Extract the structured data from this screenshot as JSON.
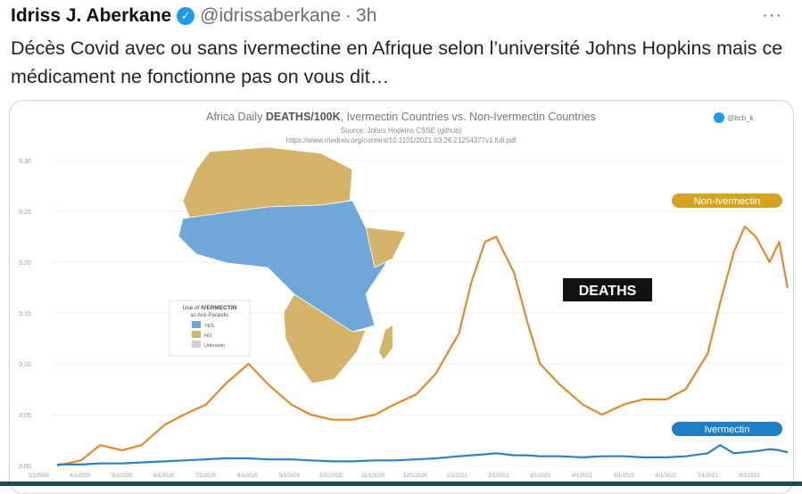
{
  "tweet": {
    "author_name": "Idriss J. Aberkane",
    "verified_badge": "verified-check-icon",
    "handle": "@idrissaberkane",
    "separator": "·",
    "time": "3h",
    "more_icon": "more-horizontal-icon",
    "more_label": "···",
    "text": "Décès Covid avec ou sans ivermectine en Afrique selon l’université Johns Hopkins mais ce médicament ne fonctionne pas on vous dit…"
  },
  "chart_data": {
    "type": "line",
    "title_bold": "DEATHS/100K",
    "title_prefix": "Africa Daily ",
    "title_suffix": ", Ivermectin Countries vs. Non-Ivermectin Countries",
    "source": "Source: Johns Hopkins CSSE (github)",
    "url": "https://www.medrxiv.org/content/10.1101/2021.03.26.21254377v1.full.pdf",
    "credit": "@bcb_k",
    "annotation": "DEATHS",
    "ylim": [
      0,
      0.3
    ],
    "y_ticks": [
      "0.30",
      "0.25",
      "0.20",
      "0.15",
      "0.10",
      "0.05",
      "0.00"
    ],
    "x_ticks": [
      "3/1/2020",
      "4/1/2020",
      "5/1/2020",
      "6/1/2020",
      "7/1/2020",
      "8/1/2020",
      "9/1/2020",
      "10/1/2020",
      "11/1/2020",
      "12/1/2020",
      "1/1/2021",
      "2/1/2021",
      "3/1/2021",
      "4/1/2021",
      "5/1/2021",
      "6/1/2021",
      "7/1/2021",
      "8/1/2021"
    ],
    "grid": true,
    "x": [
      "2020-03-15",
      "2020-04-01",
      "2020-04-15",
      "2020-05-01",
      "2020-05-15",
      "2020-06-01",
      "2020-06-15",
      "2020-07-01",
      "2020-07-15",
      "2020-08-01",
      "2020-08-15",
      "2020-09-01",
      "2020-09-15",
      "2020-10-01",
      "2020-10-15",
      "2020-11-01",
      "2020-11-15",
      "2020-12-01",
      "2020-12-15",
      "2021-01-01",
      "2021-01-10",
      "2021-01-20",
      "2021-01-28",
      "2021-02-10",
      "2021-02-20",
      "2021-03-01",
      "2021-03-15",
      "2021-04-01",
      "2021-04-15",
      "2021-05-01",
      "2021-05-15",
      "2021-06-01",
      "2021-06-15",
      "2021-07-01",
      "2021-07-10",
      "2021-07-20",
      "2021-07-28",
      "2021-08-05",
      "2021-08-15",
      "2021-08-22",
      "2021-08-28"
    ],
    "series": [
      {
        "name": "Non-Ivermectin",
        "color": "#e08a2c",
        "values": [
          0,
          0.005,
          0.02,
          0.015,
          0.02,
          0.04,
          0.05,
          0.06,
          0.08,
          0.1,
          0.08,
          0.06,
          0.05,
          0.045,
          0.045,
          0.05,
          0.06,
          0.07,
          0.09,
          0.13,
          0.18,
          0.22,
          0.225,
          0.19,
          0.14,
          0.1,
          0.08,
          0.06,
          0.05,
          0.06,
          0.065,
          0.065,
          0.075,
          0.11,
          0.16,
          0.21,
          0.235,
          0.225,
          0.2,
          0.22,
          0.175
        ]
      },
      {
        "name": "Ivermectin",
        "color": "#2f7fc1",
        "values": [
          0.001,
          0.001,
          0.002,
          0.002,
          0.003,
          0.004,
          0.005,
          0.006,
          0.007,
          0.007,
          0.006,
          0.006,
          0.005,
          0.004,
          0.004,
          0.005,
          0.005,
          0.006,
          0.007,
          0.009,
          0.01,
          0.011,
          0.012,
          0.01,
          0.01,
          0.009,
          0.009,
          0.008,
          0.009,
          0.009,
          0.008,
          0.008,
          0.009,
          0.012,
          0.02,
          0.012,
          0.013,
          0.014,
          0.016,
          0.015,
          0.013
        ]
      }
    ]
  },
  "map": {
    "legend_title_prefix": "Use of ",
    "legend_title_bold": "IVERMECTIN",
    "legend_subtitle": "as Anti-Parasitic",
    "legend_items": [
      {
        "label": "YES",
        "color": "#6fa7d8"
      },
      {
        "label": "NO",
        "color": "#d4b46a"
      },
      {
        "label": "Unknown",
        "color": "#d0d0d0"
      }
    ]
  }
}
